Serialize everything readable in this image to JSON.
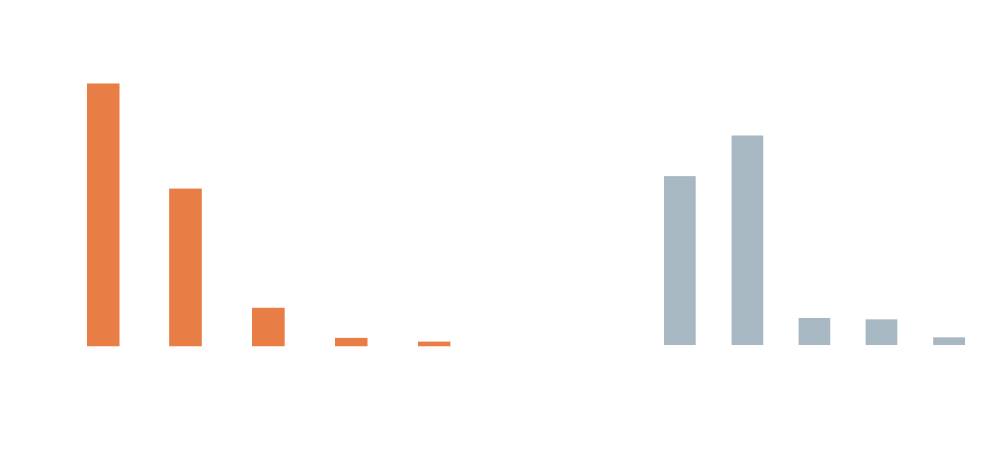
{
  "chart_data": [
    {
      "type": "bar",
      "categories": [
        "",
        "",
        "",
        "",
        ""
      ],
      "values": [
        100,
        60,
        14.7,
        3.2,
        1.8
      ],
      "color": "#E87E46",
      "ylim": [
        0,
        100
      ],
      "grid": false,
      "legend": "none"
    },
    {
      "type": "bar",
      "categories": [
        "",
        "",
        "",
        "",
        ""
      ],
      "values": [
        64.6,
        80.1,
        10.3,
        9.8,
        2.9
      ],
      "color": "#A7B8C2",
      "ylim": [
        0,
        100
      ],
      "grid": false,
      "legend": "none"
    }
  ]
}
